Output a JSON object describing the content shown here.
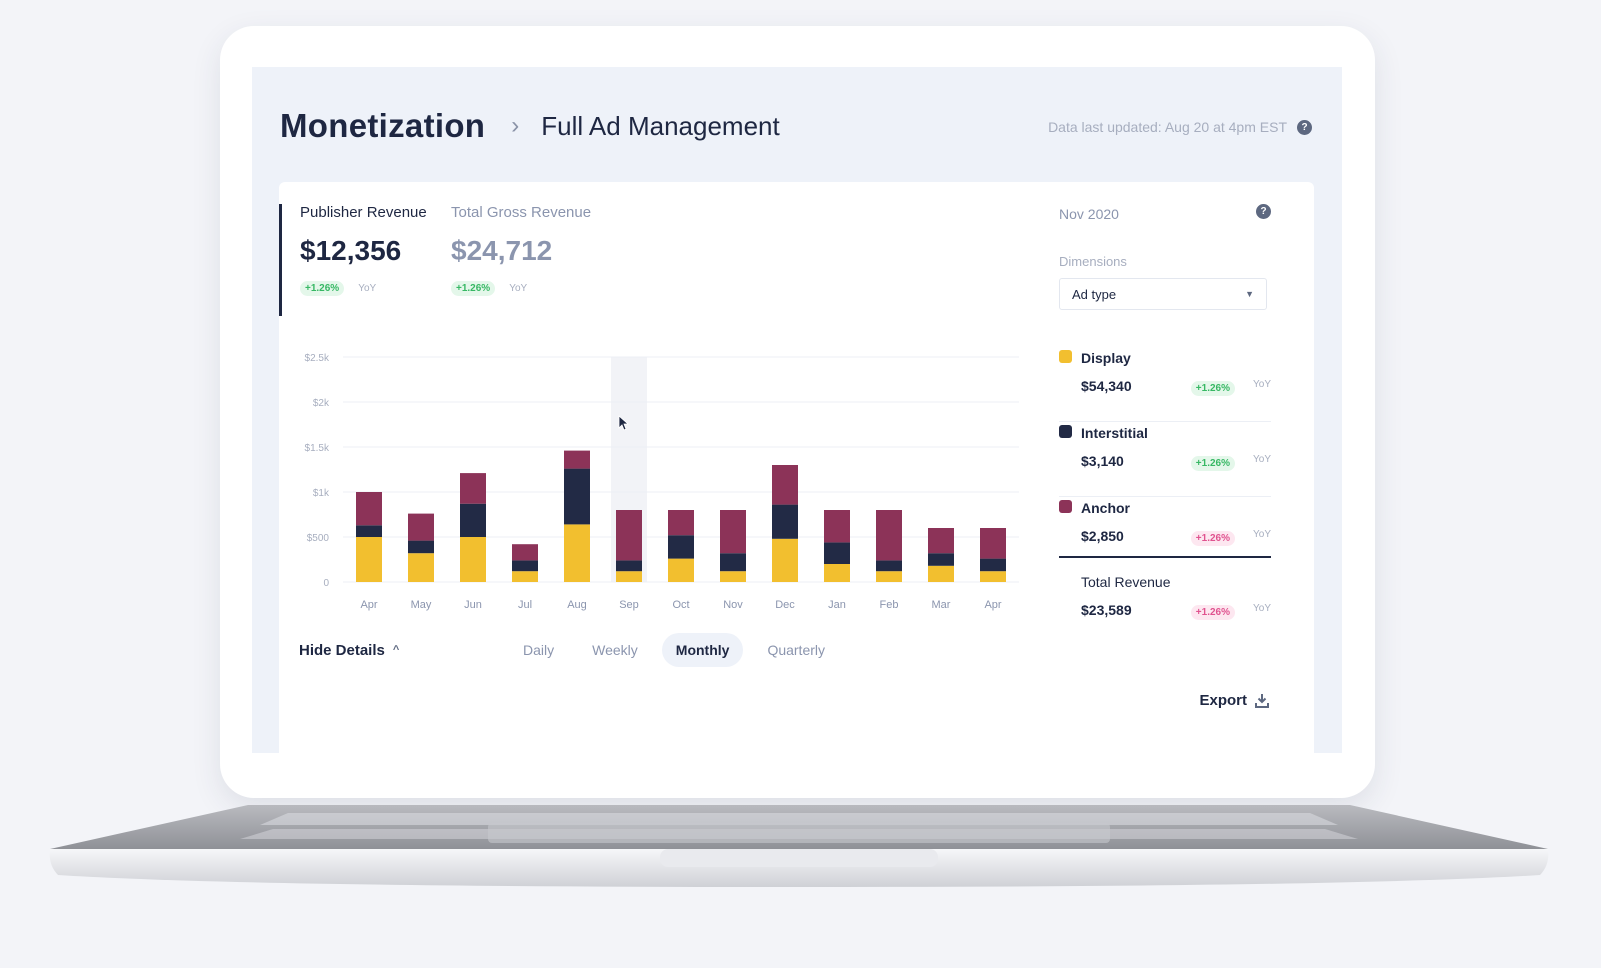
{
  "header": {
    "title": "Monetization",
    "subtitle": "Full Ad Management",
    "updated": "Data last updated: Aug 20 at 4pm EST"
  },
  "metrics": [
    {
      "label": "Publisher Revenue",
      "value": "$12,356",
      "change": "+1.26%",
      "yoy": "YoY"
    },
    {
      "label": "Total Gross Revenue",
      "value": "$24,712",
      "change": "+1.26%",
      "yoy": "YoY"
    }
  ],
  "controls": {
    "hide_details": "Hide Details",
    "periods": [
      "Daily",
      "Weekly",
      "Monthly",
      "Quarterly"
    ],
    "active_period": "Monthly"
  },
  "sidebar": {
    "date": "Nov 2020",
    "dimensions_label": "Dimensions",
    "dimension_value": "Ad type",
    "legend": [
      {
        "name": "Display",
        "amount": "$54,340",
        "change": "+1.26%",
        "yoy": "YoY",
        "color": "#f2bf2f",
        "trend": "positive"
      },
      {
        "name": "Interstitial",
        "amount": "$3,140",
        "change": "+1.26%",
        "yoy": "YoY",
        "color": "#222a45",
        "trend": "positive"
      },
      {
        "name": "Anchor",
        "amount": "$2,850",
        "change": "+1.26%",
        "yoy": "YoY",
        "color": "#8c3358",
        "trend": "negative"
      }
    ],
    "total": {
      "name": "Total Revenue",
      "amount": "$23,589",
      "change": "+1.26%",
      "yoy": "YoY",
      "trend": "negative"
    },
    "export": "Export"
  },
  "chart_data": {
    "type": "bar",
    "stacked": true,
    "categories": [
      "Apr",
      "May",
      "Jun",
      "Jul",
      "Aug",
      "Sep",
      "Oct",
      "Nov",
      "Dec",
      "Jan",
      "Feb",
      "Mar",
      "Apr"
    ],
    "series": [
      {
        "name": "Display",
        "color": "#f2bf2f",
        "values": [
          500,
          320,
          500,
          120,
          640,
          120,
          260,
          120,
          480,
          200,
          120,
          180,
          120
        ]
      },
      {
        "name": "Interstitial",
        "color": "#222a45",
        "values": [
          130,
          140,
          370,
          120,
          620,
          120,
          260,
          200,
          380,
          240,
          120,
          140,
          140
        ]
      },
      {
        "name": "Anchor",
        "color": "#8c3358",
        "values": [
          370,
          300,
          340,
          180,
          200,
          560,
          280,
          480,
          440,
          360,
          560,
          280,
          340
        ]
      }
    ],
    "yticks": [
      "0",
      "$500",
      "$1k",
      "$1.5k",
      "$2k",
      "$2.5k"
    ],
    "ylim": [
      0,
      2500
    ],
    "grid": true,
    "highlight_index": 5
  }
}
